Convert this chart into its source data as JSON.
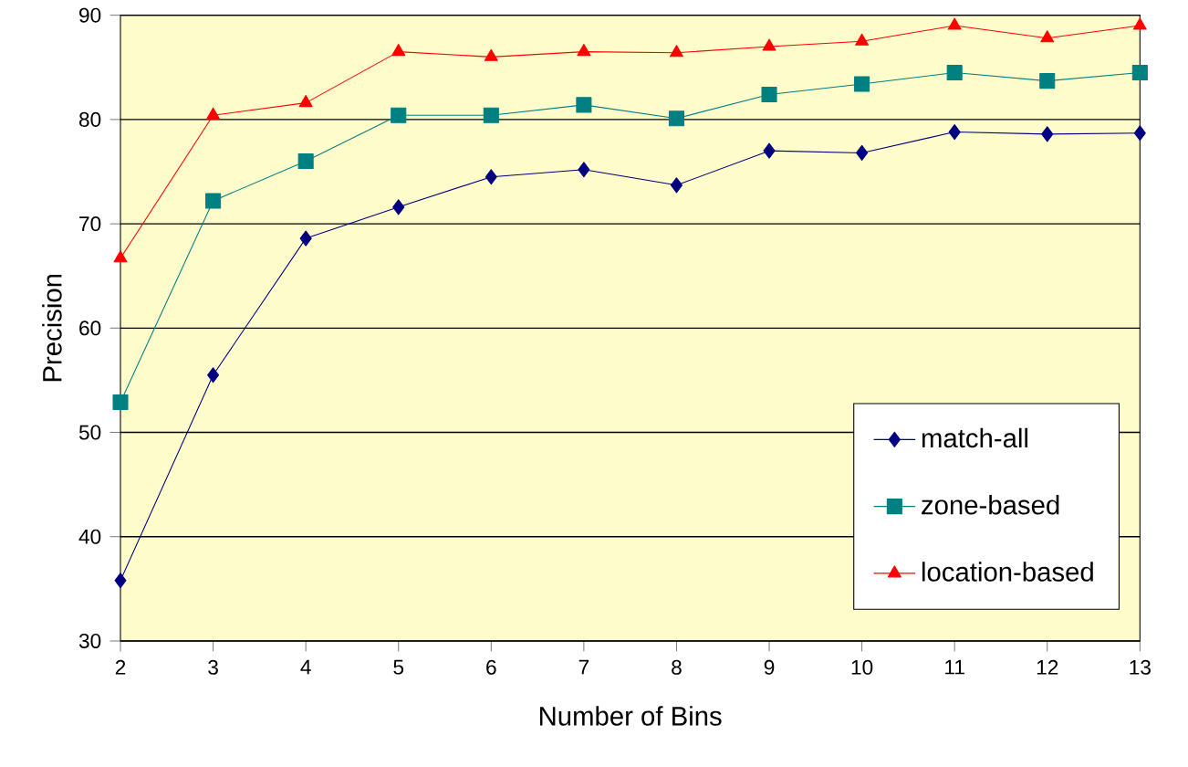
{
  "chart_data": {
    "type": "line",
    "xlabel": "Number of Bins",
    "ylabel": "Precision",
    "x": [
      2,
      3,
      4,
      5,
      6,
      7,
      8,
      9,
      10,
      11,
      12,
      13
    ],
    "series": [
      {
        "name": "match-all",
        "color": "#000080",
        "marker": "diamond",
        "values": [
          35.8,
          55.5,
          68.6,
          71.6,
          74.5,
          75.2,
          73.7,
          77.0,
          76.8,
          78.8,
          78.6,
          78.7
        ]
      },
      {
        "name": "zone-based",
        "color": "#008080",
        "marker": "square",
        "values": [
          52.9,
          72.2,
          76.0,
          80.4,
          80.4,
          81.4,
          80.1,
          82.4,
          83.4,
          84.5,
          83.7,
          84.5
        ]
      },
      {
        "name": "location-based",
        "color": "#ff0000",
        "marker": "triangle",
        "values": [
          66.7,
          80.4,
          81.6,
          86.5,
          86.0,
          86.5,
          86.4,
          87.0,
          87.5,
          89.0,
          87.8,
          89.0
        ]
      }
    ],
    "xlim": [
      2,
      13
    ],
    "ylim": [
      30,
      90
    ],
    "xticks": [
      2,
      3,
      4,
      5,
      6,
      7,
      8,
      9,
      10,
      11,
      12,
      13
    ],
    "yticks": [
      30,
      40,
      50,
      60,
      70,
      80,
      90
    ],
    "grid": "y",
    "legend": "bottom right",
    "line_style": "solid"
  }
}
